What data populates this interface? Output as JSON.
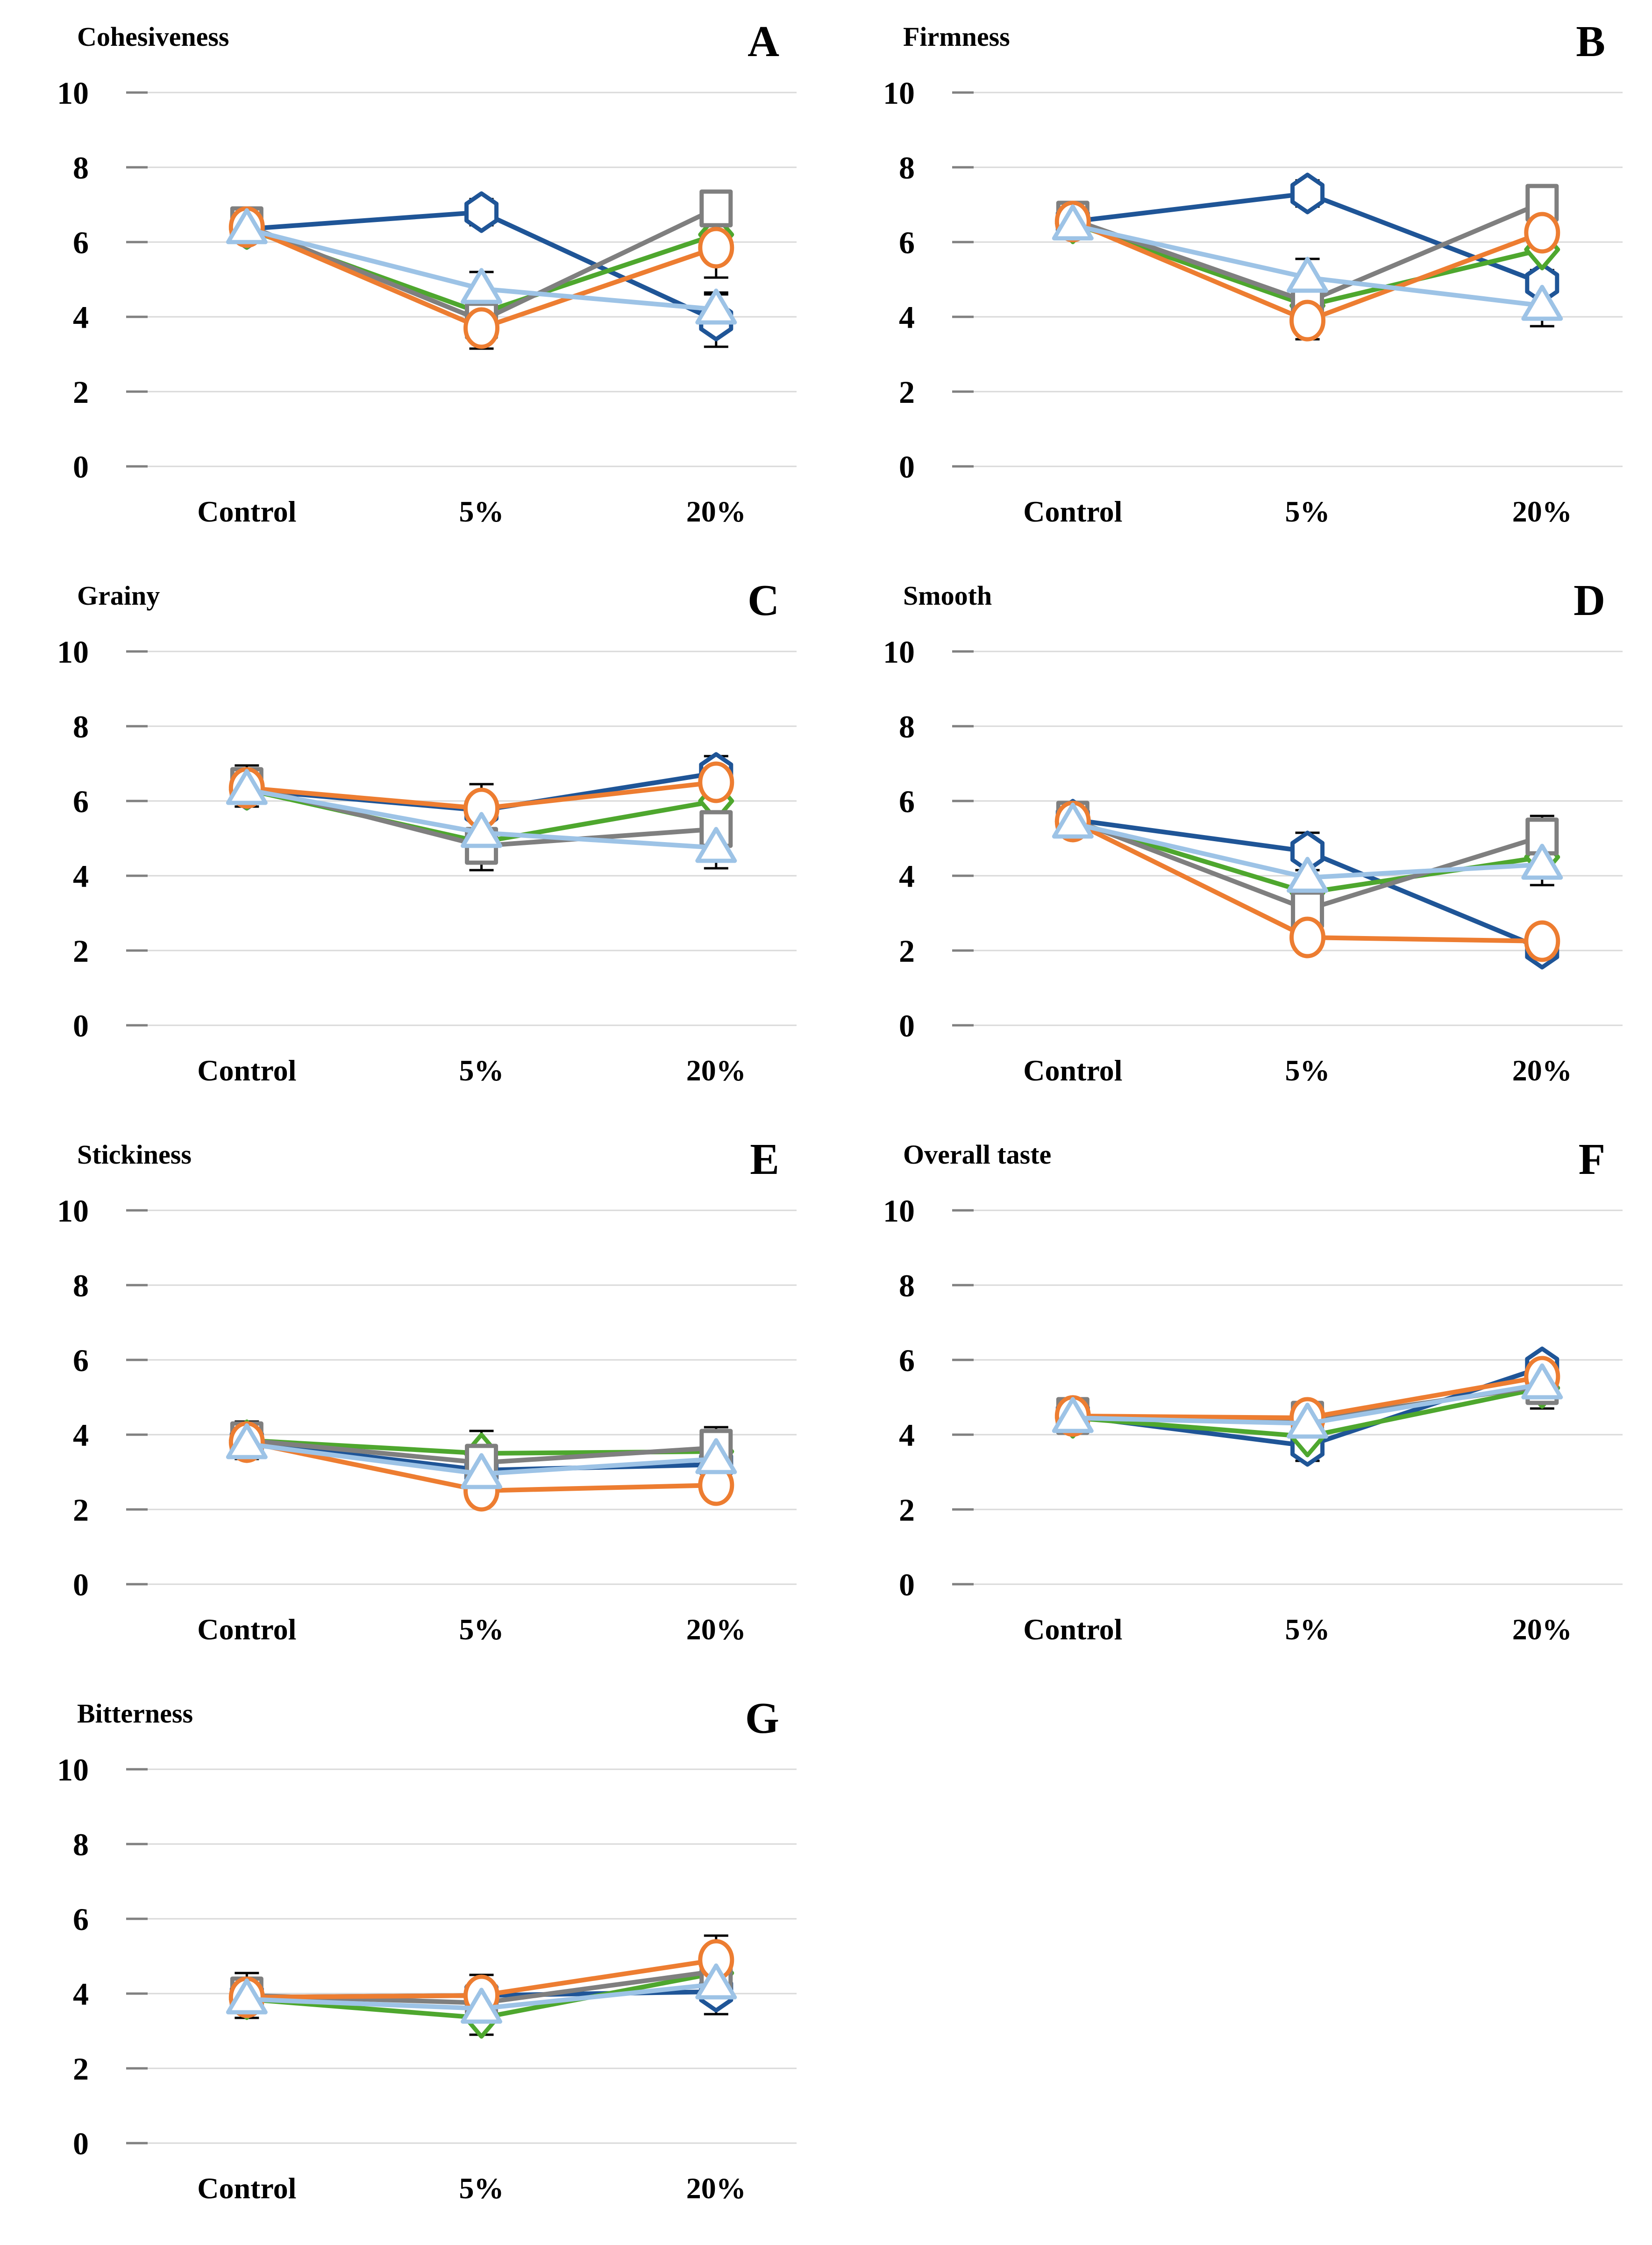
{
  "figure": {
    "background": "#ffffff",
    "grid_color": "#d9d9d9",
    "tick_color": "#808080",
    "error_bar_color": "#000000",
    "text_color": "#000000"
  },
  "series_style": [
    {
      "key": "navy",
      "marker": "hexagon",
      "color": "#1f5597"
    },
    {
      "key": "green",
      "marker": "diamond",
      "color": "#4ea72e"
    },
    {
      "key": "gray",
      "marker": "square",
      "color": "#7f7f7f"
    },
    {
      "key": "orange",
      "marker": "circle",
      "color": "#ed7d31"
    },
    {
      "key": "lightblue",
      "marker": "triangle",
      "color": "#9dc3e6"
    }
  ],
  "chart_data": [
    {
      "type": "line",
      "letter": "A",
      "title": "Cohesiveness",
      "categories": [
        "Control",
        "5%",
        "20%"
      ],
      "ylim": [
        0,
        10
      ],
      "yticks": [
        10,
        8,
        6,
        4,
        2,
        0
      ],
      "grid": true,
      "legend": "none",
      "series": [
        {
          "name": "navy-hexagon",
          "values": [
            6.35,
            6.8,
            3.9
          ],
          "err": [
            0,
            0.35,
            0.7
          ]
        },
        {
          "name": "green-diamond",
          "values": [
            6.35,
            4.1,
            6.2
          ],
          "err": [
            0,
            0,
            0
          ]
        },
        {
          "name": "gray-square",
          "values": [
            6.45,
            3.9,
            6.9
          ],
          "err": [
            0.4,
            0,
            0.3
          ]
        },
        {
          "name": "orange-circle",
          "values": [
            6.4,
            3.7,
            5.85
          ],
          "err": [
            0,
            0.55,
            0.8
          ]
        },
        {
          "name": "lightblue-triangle",
          "values": [
            6.35,
            4.75,
            4.2
          ],
          "err": [
            0,
            0.45,
            0.45
          ]
        }
      ]
    },
    {
      "type": "line",
      "letter": "B",
      "title": "Firmness",
      "categories": [
        "Control",
        "5%",
        "20%"
      ],
      "ylim": [
        0,
        10
      ],
      "yticks": [
        10,
        8,
        6,
        4,
        2,
        0
      ],
      "grid": true,
      "legend": "none",
      "series": [
        {
          "name": "navy-hexagon",
          "values": [
            6.55,
            7.3,
            4.9
          ],
          "err": [
            0,
            0.35,
            0
          ]
        },
        {
          "name": "green-diamond",
          "values": [
            6.5,
            4.3,
            5.8
          ],
          "err": [
            0,
            0,
            0.55
          ]
        },
        {
          "name": "gray-square",
          "values": [
            6.6,
            4.4,
            7.05
          ],
          "err": [
            0.3,
            0.2,
            0.35
          ]
        },
        {
          "name": "orange-circle",
          "values": [
            6.55,
            3.9,
            6.25
          ],
          "err": [
            0,
            0.5,
            0.45
          ]
        },
        {
          "name": "lightblue-triangle",
          "values": [
            6.45,
            5.05,
            4.3
          ],
          "err": [
            0,
            0.5,
            0.55
          ]
        }
      ]
    },
    {
      "type": "line",
      "letter": "C",
      "title": "Grainy",
      "categories": [
        "Control",
        "5%",
        "20%"
      ],
      "ylim": [
        0,
        10
      ],
      "yticks": [
        10,
        8,
        6,
        4,
        2,
        0
      ],
      "grid": true,
      "legend": "none",
      "series": [
        {
          "name": "navy-hexagon",
          "values": [
            6.3,
            5.75,
            6.75
          ],
          "err": [
            0,
            0,
            0.45
          ]
        },
        {
          "name": "green-diamond",
          "values": [
            6.3,
            4.9,
            6.0
          ],
          "err": [
            0,
            0,
            0
          ]
        },
        {
          "name": "gray-square",
          "values": [
            6.4,
            4.8,
            5.25
          ],
          "err": [
            0.55,
            0.65,
            0
          ]
        },
        {
          "name": "orange-circle",
          "values": [
            6.35,
            5.8,
            6.5
          ],
          "err": [
            0,
            0.65,
            0
          ]
        },
        {
          "name": "lightblue-triangle",
          "values": [
            6.3,
            5.15,
            4.75
          ],
          "err": [
            0,
            0,
            0.55
          ]
        }
      ]
    },
    {
      "type": "line",
      "letter": "D",
      "title": "Smooth",
      "categories": [
        "Control",
        "5%",
        "20%"
      ],
      "ylim": [
        0,
        10
      ],
      "yticks": [
        10,
        8,
        6,
        4,
        2,
        0
      ],
      "grid": true,
      "legend": "none",
      "series": [
        {
          "name": "navy-hexagon",
          "values": [
            5.5,
            4.65,
            2.05
          ],
          "err": [
            0,
            0.5,
            0
          ]
        },
        {
          "name": "green-diamond",
          "values": [
            5.45,
            3.55,
            4.5
          ],
          "err": [
            0,
            0,
            0
          ]
        },
        {
          "name": "gray-square",
          "values": [
            5.5,
            3.1,
            5.05
          ],
          "err": [
            0.3,
            0.3,
            0.55
          ]
        },
        {
          "name": "orange-circle",
          "values": [
            5.45,
            2.35,
            2.25
          ],
          "err": [
            0,
            0.3,
            0.3
          ]
        },
        {
          "name": "lightblue-triangle",
          "values": [
            5.4,
            3.95,
            4.3
          ],
          "err": [
            0,
            0.45,
            0.55
          ]
        }
      ]
    },
    {
      "type": "line",
      "letter": "E",
      "title": "Stickiness",
      "categories": [
        "Control",
        "5%",
        "20%"
      ],
      "ylim": [
        0,
        10
      ],
      "yticks": [
        10,
        8,
        6,
        4,
        2,
        0
      ],
      "grid": true,
      "legend": "none",
      "series": [
        {
          "name": "navy-hexagon",
          "values": [
            3.8,
            3.05,
            3.2
          ],
          "err": [
            0,
            0,
            0
          ]
        },
        {
          "name": "green-diamond",
          "values": [
            3.85,
            3.5,
            3.55
          ],
          "err": [
            0,
            0.6,
            0
          ]
        },
        {
          "name": "gray-square",
          "values": [
            3.85,
            3.25,
            3.65
          ],
          "err": [
            0.5,
            0,
            0.55
          ]
        },
        {
          "name": "orange-circle",
          "values": [
            3.8,
            2.5,
            2.65
          ],
          "err": [
            0,
            0.3,
            0.2
          ]
        },
        {
          "name": "lightblue-triangle",
          "values": [
            3.75,
            2.95,
            3.35
          ],
          "err": [
            0,
            0,
            0
          ]
        }
      ]
    },
    {
      "type": "line",
      "letter": "F",
      "title": "Overall taste",
      "categories": [
        "Control",
        "5%",
        "20%"
      ],
      "ylim": [
        0,
        10
      ],
      "yticks": [
        10,
        8,
        6,
        4,
        2,
        0
      ],
      "grid": true,
      "legend": "none",
      "series": [
        {
          "name": "navy-hexagon",
          "values": [
            4.5,
            3.7,
            5.8
          ],
          "err": [
            0,
            0.4,
            0
          ]
        },
        {
          "name": "green-diamond",
          "values": [
            4.45,
            3.95,
            5.25
          ],
          "err": [
            0,
            0,
            0
          ]
        },
        {
          "name": "gray-square",
          "values": [
            4.5,
            4.4,
            5.3
          ],
          "err": [
            0.45,
            0.3,
            0.6
          ]
        },
        {
          "name": "orange-circle",
          "values": [
            4.5,
            4.45,
            5.55
          ],
          "err": [
            0,
            0,
            0
          ]
        },
        {
          "name": "lightblue-triangle",
          "values": [
            4.45,
            4.3,
            5.35
          ],
          "err": [
            0,
            0,
            0
          ]
        }
      ]
    },
    {
      "type": "line",
      "letter": "G",
      "title": "Bitterness",
      "categories": [
        "Control",
        "5%",
        "20%"
      ],
      "ylim": [
        0,
        10
      ],
      "yticks": [
        10,
        8,
        6,
        4,
        2,
        0
      ],
      "grid": true,
      "legend": "none",
      "series": [
        {
          "name": "navy-hexagon",
          "values": [
            3.9,
            3.95,
            4.05
          ],
          "err": [
            0,
            0,
            0.6
          ]
        },
        {
          "name": "green-diamond",
          "values": [
            3.85,
            3.35,
            4.55
          ],
          "err": [
            0,
            0.45,
            0
          ]
        },
        {
          "name": "gray-square",
          "values": [
            3.95,
            3.75,
            4.6
          ],
          "err": [
            0.6,
            0,
            0
          ]
        },
        {
          "name": "orange-circle",
          "values": [
            3.9,
            3.95,
            4.9
          ],
          "err": [
            0,
            0.55,
            0.65
          ]
        },
        {
          "name": "lightblue-triangle",
          "values": [
            3.85,
            3.6,
            4.25
          ],
          "err": [
            0,
            0,
            0
          ]
        }
      ]
    }
  ]
}
